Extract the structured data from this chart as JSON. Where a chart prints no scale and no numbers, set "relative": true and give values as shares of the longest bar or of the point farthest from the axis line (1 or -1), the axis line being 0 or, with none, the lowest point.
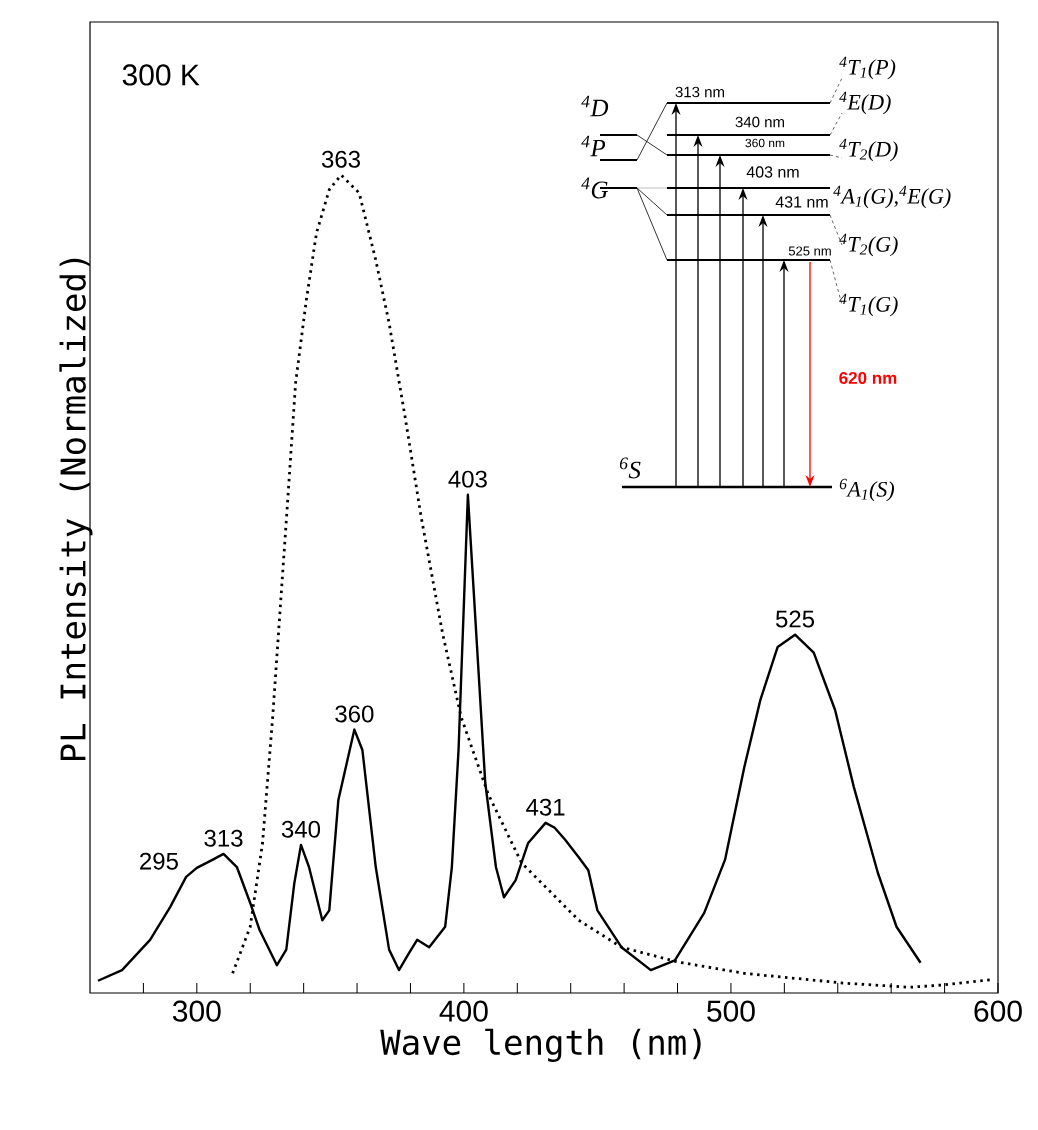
{
  "chart_data": {
    "type": "line",
    "relative": true,
    "xlabel": "Wave length (nm)",
    "ylabel": "PL Intensity (Normalized)",
    "xlim": [
      260,
      600
    ],
    "xticks": [
      {
        "value": 280,
        "label": null
      },
      300,
      {
        "value": 320,
        "label": null
      },
      {
        "value": 340,
        "label": null
      },
      {
        "value": 360,
        "label": null
      },
      {
        "value": 380,
        "label": null
      },
      400,
      {
        "value": 420,
        "label": null
      },
      {
        "value": 440,
        "label": null
      },
      {
        "value": 460,
        "label": null
      },
      {
        "value": 480,
        "label": null
      },
      500,
      {
        "value": 520,
        "label": null
      },
      {
        "value": 540,
        "label": null
      },
      {
        "value": 560,
        "label": null
      },
      {
        "value": 580,
        "label": null
      },
      600
    ],
    "series": [
      {
        "color": "#000000",
        "line_style": "solid",
        "x": [
          263,
          272,
          282.5,
          290,
          296,
          300,
          306,
          310,
          315,
          320,
          323.5,
          330,
          333.5,
          336.5,
          339,
          342,
          347,
          349.6,
          353,
          359,
          362,
          367,
          372,
          375.7,
          379.5,
          382.5,
          387,
          393,
          395.5,
          398,
          401.5,
          408,
          412,
          415,
          419.4,
          424,
          430.6,
          434,
          438,
          443,
          446.6,
          450,
          459,
          470,
          479,
          490,
          497.8,
          505,
          511,
          517.5,
          524,
          531,
          539,
          546,
          555,
          562,
          571
        ],
        "values": [
          0.015,
          0.028,
          0.065,
          0.105,
          0.142,
          0.153,
          0.163,
          0.17,
          0.154,
          0.11,
          0.077,
          0.034,
          0.053,
          0.134,
          0.181,
          0.154,
          0.089,
          0.101,
          0.236,
          0.322,
          0.297,
          0.154,
          0.053,
          0.028,
          0.049,
          0.065,
          0.056,
          0.081,
          0.154,
          0.297,
          0.609,
          0.257,
          0.154,
          0.117,
          0.138,
          0.183,
          0.208,
          0.202,
          0.187,
          0.166,
          0.15,
          0.101,
          0.056,
          0.028,
          0.04,
          0.098,
          0.163,
          0.276,
          0.358,
          0.423,
          0.438,
          0.416,
          0.346,
          0.252,
          0.147,
          0.081,
          0.037
        ]
      },
      {
        "color": "#000000",
        "line_style": "dotted",
        "x": [
          313.4,
          320,
          324.6,
          328.4,
          333.6,
          337,
          341,
          344.8,
          349.6,
          354,
          360.8,
          367,
          372,
          378,
          384,
          392,
          399,
          409,
          421.6,
          443,
          459,
          480,
          505,
          542.5,
          567,
          580,
          597
        ],
        "values": [
          0.024,
          0.081,
          0.183,
          0.337,
          0.582,
          0.746,
          0.847,
          0.929,
          0.982,
          1.0,
          0.978,
          0.896,
          0.819,
          0.704,
          0.582,
          0.44,
          0.337,
          0.244,
          0.159,
          0.089,
          0.056,
          0.038,
          0.024,
          0.012,
          0.007,
          0.01,
          0.016
        ]
      }
    ],
    "annotations": [
      "300 K",
      {
        "text": "295",
        "x": 296,
        "y": 0.142
      },
      {
        "text": "313",
        "x": 310,
        "y": 0.17
      },
      {
        "text": "340",
        "x": 339,
        "y": 0.181
      },
      {
        "text": "360",
        "x": 359,
        "y": 0.322
      },
      {
        "text": "363",
        "x": 354,
        "y": 1.0
      },
      {
        "text": "403",
        "x": 401.5,
        "y": 0.609
      },
      {
        "text": "431",
        "x": 430.6,
        "y": 0.208
      },
      {
        "text": "525",
        "x": 524,
        "y": 0.438
      },
      "313 nm",
      "340 nm",
      "360 nm",
      "403 nm",
      "431 nm",
      "525 nm",
      "620 nm",
      "$^{4}$D",
      "$^{4}$P",
      "$^{4}$G",
      "$^{6}$S",
      "$^{4}$T$_{1}$(P)",
      "$^{4}$E(D)",
      "$^{4}$T$_{2}$(D)",
      "$^{4}$A$_{1}$(G),$^{4}$E(G)",
      "$^{4}$T$_{2}$(G)",
      "$^{4}$T$_{1}$(G)",
      "$^{6}$A$_{1}$(S)"
    ]
  }
}
